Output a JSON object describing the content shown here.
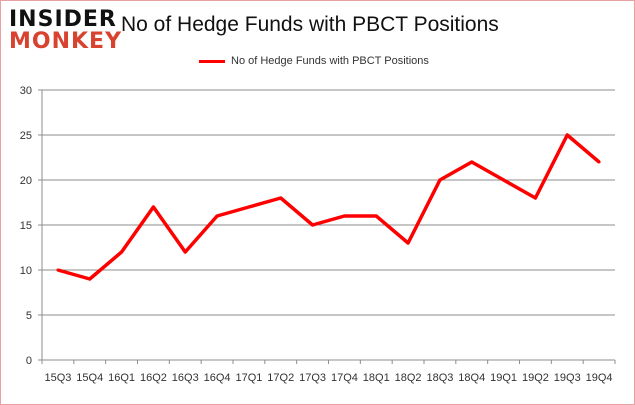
{
  "logo": {
    "line1": "INSIDER",
    "line2": "MONKEY"
  },
  "chart_data": {
    "type": "line",
    "title": "No of Hedge Funds with PBCT Positions",
    "xlabel": "",
    "ylabel": "",
    "categories": [
      "15Q3",
      "15Q4",
      "16Q1",
      "16Q2",
      "16Q3",
      "16Q4",
      "17Q1",
      "17Q2",
      "17Q3",
      "17Q4",
      "18Q1",
      "18Q2",
      "18Q3",
      "18Q4",
      "19Q1",
      "19Q2",
      "19Q3",
      "19Q4"
    ],
    "series": [
      {
        "name": "No of Hedge Funds with PBCT Positions",
        "color": "#ff0000",
        "values": [
          10,
          9,
          12,
          17,
          12,
          16,
          17,
          18,
          15,
          16,
          16,
          13,
          20,
          22,
          20,
          18,
          25,
          22
        ]
      }
    ],
    "ylim": [
      0,
      30
    ],
    "yticks": [
      0,
      5,
      10,
      15,
      20,
      25,
      30
    ],
    "grid": true,
    "legend": "top-center"
  }
}
